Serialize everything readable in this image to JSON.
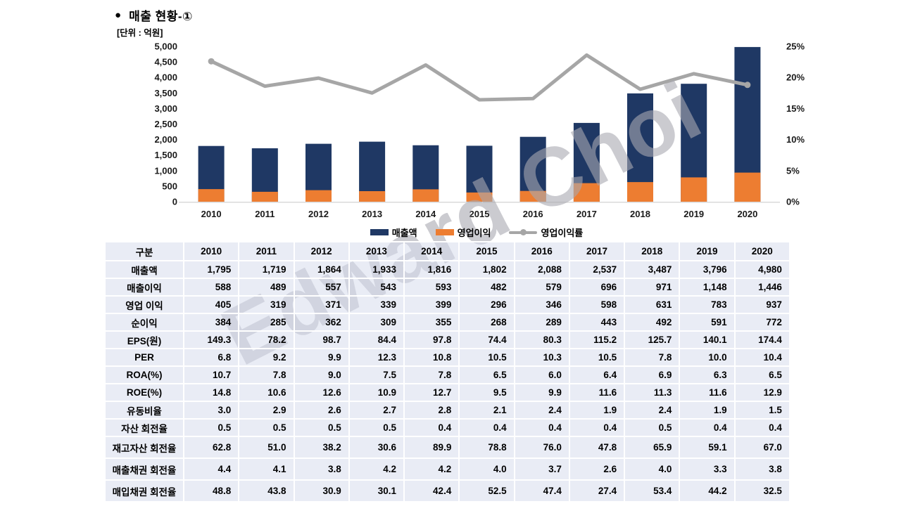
{
  "page": {
    "bullet": "●",
    "title": "매출 현황-①",
    "unit_label": "[단위 : 억원]",
    "watermark": "Edward Choi"
  },
  "chart_data": {
    "type": "bar+line",
    "title": "매출 현황-①",
    "unit": "억원",
    "grid": false,
    "legend_position": "bottom",
    "categories": [
      "2010",
      "2011",
      "2012",
      "2013",
      "2014",
      "2015",
      "2016",
      "2017",
      "2018",
      "2019",
      "2020"
    ],
    "series": [
      {
        "name": "매출액",
        "type": "bar",
        "axis": "left",
        "color": "#1f3864",
        "values": [
          1795,
          1719,
          1864,
          1933,
          1816,
          1802,
          2088,
          2537,
          3487,
          3796,
          4980
        ]
      },
      {
        "name": "영업이익",
        "type": "bar",
        "axis": "left",
        "color": "#ed7d31",
        "overlay": true,
        "values": [
          405,
          319,
          371,
          339,
          399,
          296,
          346,
          598,
          631,
          783,
          937
        ]
      },
      {
        "name": "영업이익률",
        "type": "line",
        "axis": "right",
        "color": "#a6a6a6",
        "values": [
          22.6,
          18.6,
          19.9,
          17.5,
          22.0,
          16.4,
          16.6,
          23.6,
          18.1,
          20.6,
          18.8
        ]
      }
    ],
    "left_axis": {
      "min": 0,
      "max": 5000,
      "step": 500,
      "ticks": [
        "0",
        "500",
        "1,000",
        "1,500",
        "2,000",
        "2,500",
        "3,000",
        "3,500",
        "4,000",
        "4,500",
        "5,000"
      ]
    },
    "right_axis": {
      "min": 0,
      "max": 25,
      "step": 5,
      "ticks": [
        "0%",
        "5%",
        "10%",
        "15%",
        "20%",
        "25%"
      ]
    },
    "legend": [
      {
        "label": "매출액",
        "marker": "rect",
        "color": "#1f3864"
      },
      {
        "label": "영업이익",
        "marker": "rect",
        "color": "#ed7d31"
      },
      {
        "label": "영업이익률",
        "marker": "line",
        "color": "#a6a6a6"
      }
    ]
  },
  "table": {
    "header": [
      "구분",
      "2010",
      "2011",
      "2012",
      "2013",
      "2014",
      "2015",
      "2016",
      "2017",
      "2018",
      "2019",
      "2020"
    ],
    "rows": [
      {
        "label": "매출액",
        "values": [
          "1,795",
          "1,719",
          "1,864",
          "1,933",
          "1,816",
          "1,802",
          "2,088",
          "2,537",
          "3,487",
          "3,796",
          "4,980"
        ]
      },
      {
        "label": "매출이익",
        "values": [
          "588",
          "489",
          "557",
          "543",
          "593",
          "482",
          "579",
          "696",
          "971",
          "1,148",
          "1,446"
        ]
      },
      {
        "label": "영업 이익",
        "values": [
          "405",
          "319",
          "371",
          "339",
          "399",
          "296",
          "346",
          "598",
          "631",
          "783",
          "937"
        ]
      },
      {
        "label": "순이익",
        "values": [
          "384",
          "285",
          "362",
          "309",
          "355",
          "268",
          "289",
          "443",
          "492",
          "591",
          "772"
        ]
      },
      {
        "label": "EPS(원)",
        "values": [
          "149.3",
          "78.2",
          "98.7",
          "84.4",
          "97.8",
          "74.4",
          "80.3",
          "115.2",
          "125.7",
          "140.1",
          "174.4"
        ]
      },
      {
        "label": "PER",
        "values": [
          "6.8",
          "9.2",
          "9.9",
          "12.3",
          "10.8",
          "10.5",
          "10.3",
          "10.5",
          "7.8",
          "10.0",
          "10.4"
        ]
      },
      {
        "label": "ROA(%)",
        "values": [
          "10.7",
          "7.8",
          "9.0",
          "7.5",
          "7.8",
          "6.5",
          "6.0",
          "6.4",
          "6.9",
          "6.3",
          "6.5"
        ]
      },
      {
        "label": "ROE(%)",
        "values": [
          "14.8",
          "10.6",
          "12.6",
          "10.9",
          "12.7",
          "9.5",
          "9.9",
          "11.6",
          "11.3",
          "11.6",
          "12.9"
        ]
      },
      {
        "label": "유동비율",
        "values": [
          "3.0",
          "2.9",
          "2.6",
          "2.7",
          "2.8",
          "2.1",
          "2.4",
          "1.9",
          "2.4",
          "1.9",
          "1.5"
        ]
      },
      {
        "label": "자산 회전율",
        "values": [
          "0.5",
          "0.5",
          "0.5",
          "0.5",
          "0.4",
          "0.4",
          "0.4",
          "0.4",
          "0.5",
          "0.4",
          "0.4"
        ]
      },
      {
        "label": "재고자산 회전율",
        "tall": true,
        "values": [
          "62.8",
          "51.0",
          "38.2",
          "30.6",
          "89.9",
          "78.8",
          "76.0",
          "47.8",
          "65.9",
          "59.1",
          "67.0"
        ]
      },
      {
        "label": "매출채권 회전율",
        "tall": true,
        "values": [
          "4.4",
          "4.1",
          "3.8",
          "4.2",
          "4.2",
          "4.0",
          "3.7",
          "2.6",
          "4.0",
          "3.3",
          "3.8"
        ]
      },
      {
        "label": "매입채권 회전율",
        "tall": true,
        "values": [
          "48.8",
          "43.8",
          "30.9",
          "30.1",
          "42.4",
          "52.5",
          "47.4",
          "27.4",
          "53.4",
          "44.2",
          "32.5"
        ]
      }
    ]
  }
}
